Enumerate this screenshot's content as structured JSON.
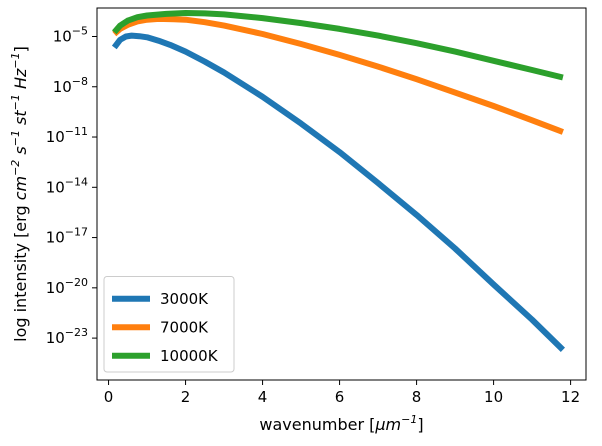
{
  "chart_data": {
    "type": "line",
    "title": "",
    "xlabel_parts": [
      {
        "t": "wavenumber [",
        "style": "normal"
      },
      {
        "t": "μm",
        "style": "italic"
      },
      {
        "t": "−1",
        "style": "sup"
      },
      {
        "t": "]",
        "style": "normal"
      }
    ],
    "ylabel_parts": [
      {
        "t": "log intensity [erg ",
        "style": "normal"
      },
      {
        "t": "cm",
        "style": "italic"
      },
      {
        "t": "−2",
        "style": "sup"
      },
      {
        "t": " s",
        "style": "italic"
      },
      {
        "t": "−1",
        "style": "sup"
      },
      {
        "t": " st",
        "style": "italic"
      },
      {
        "t": "−1",
        "style": "sup"
      },
      {
        "t": " Hz",
        "style": "italic"
      },
      {
        "t": "−1",
        "style": "sup"
      },
      {
        "t": "]",
        "style": "normal"
      }
    ],
    "x_scale": "linear",
    "y_scale": "log",
    "xlim": [
      -0.3,
      12.4
    ],
    "ylim_log10": [
      -25.5,
      -3.3
    ],
    "x_ticks": [
      0,
      2,
      4,
      6,
      8,
      10,
      12
    ],
    "y_ticks": [
      {
        "exp": -5,
        "label_base": "10",
        "label_exp": "−5"
      },
      {
        "exp": -8,
        "label_base": "10",
        "label_exp": "−8"
      },
      {
        "exp": -11,
        "label_base": "10",
        "label_exp": "−11"
      },
      {
        "exp": -14,
        "label_base": "10",
        "label_exp": "−14"
      },
      {
        "exp": -17,
        "label_base": "10",
        "label_exp": "−17"
      },
      {
        "exp": -20,
        "label_base": "10",
        "label_exp": "−20"
      },
      {
        "exp": -23,
        "label_base": "10",
        "label_exp": "−23"
      }
    ],
    "grid": false,
    "legend_position": "lower-left",
    "series": [
      {
        "name": "3000K",
        "color": "#1f77b4",
        "x": [
          0.15,
          0.3,
          0.45,
          0.6,
          0.8,
          1.0,
          1.3,
          1.6,
          2.0,
          2.5,
          3.0,
          4.0,
          5.0,
          6.0,
          7.0,
          8.0,
          9.0,
          10.0,
          11.0,
          11.8
        ],
        "log10_y": [
          -5.65,
          -5.2,
          -5.0,
          -4.95,
          -4.98,
          -5.05,
          -5.25,
          -5.5,
          -5.9,
          -6.5,
          -7.15,
          -8.6,
          -10.2,
          -11.9,
          -13.75,
          -15.65,
          -17.65,
          -19.8,
          -21.9,
          -23.7
        ]
      },
      {
        "name": "7000K",
        "color": "#ff7f0e",
        "x": [
          0.15,
          0.3,
          0.5,
          0.75,
          1.0,
          1.3,
          1.7,
          2.0,
          2.5,
          3.0,
          4.0,
          5.0,
          6.0,
          7.0,
          8.0,
          9.0,
          10.0,
          11.0,
          11.8
        ],
        "log10_y": [
          -4.85,
          -4.55,
          -4.3,
          -4.1,
          -4.0,
          -3.95,
          -3.97,
          -4.0,
          -4.15,
          -4.35,
          -4.85,
          -5.45,
          -6.1,
          -6.8,
          -7.55,
          -8.35,
          -9.15,
          -10.0,
          -10.7
        ]
      },
      {
        "name": "10000K",
        "color": "#2ca02c",
        "x": [
          0.15,
          0.3,
          0.5,
          0.75,
          1.0,
          1.5,
          2.0,
          2.5,
          3.0,
          4.0,
          5.0,
          6.0,
          7.0,
          8.0,
          9.0,
          10.0,
          11.0,
          11.8
        ],
        "log10_y": [
          -4.75,
          -4.35,
          -4.05,
          -3.85,
          -3.75,
          -3.65,
          -3.6,
          -3.62,
          -3.68,
          -3.9,
          -4.2,
          -4.55,
          -4.95,
          -5.4,
          -5.9,
          -6.45,
          -7.0,
          -7.45
        ]
      }
    ]
  }
}
